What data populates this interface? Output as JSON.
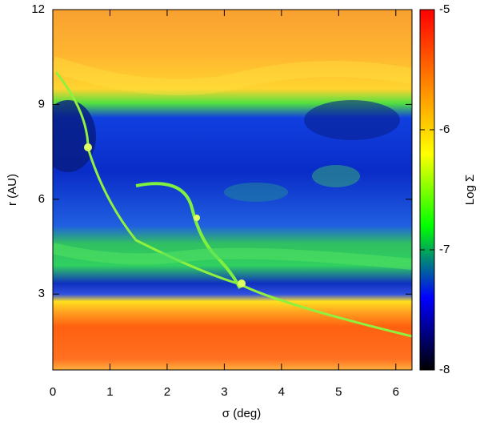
{
  "chart_data": {
    "type": "heatmap",
    "xlabel": "σ (deg)",
    "ylabel": "r (AU)",
    "xlim": [
      0,
      6.283
    ],
    "xticks": [
      0,
      1,
      2,
      3,
      4,
      5,
      6
    ],
    "ylim": [
      0.6,
      12
    ],
    "yticks": [
      3,
      6,
      9,
      12
    ],
    "colorbar": {
      "label": "Log Σ",
      "lim": [
        -8,
        -5
      ],
      "ticks": [
        -5,
        -6,
        -7,
        -8
      ],
      "colors": [
        "#000000",
        "#0000ff",
        "#00ff00",
        "#ffff00",
        "#ff8000",
        "#ff0000"
      ]
    }
  }
}
